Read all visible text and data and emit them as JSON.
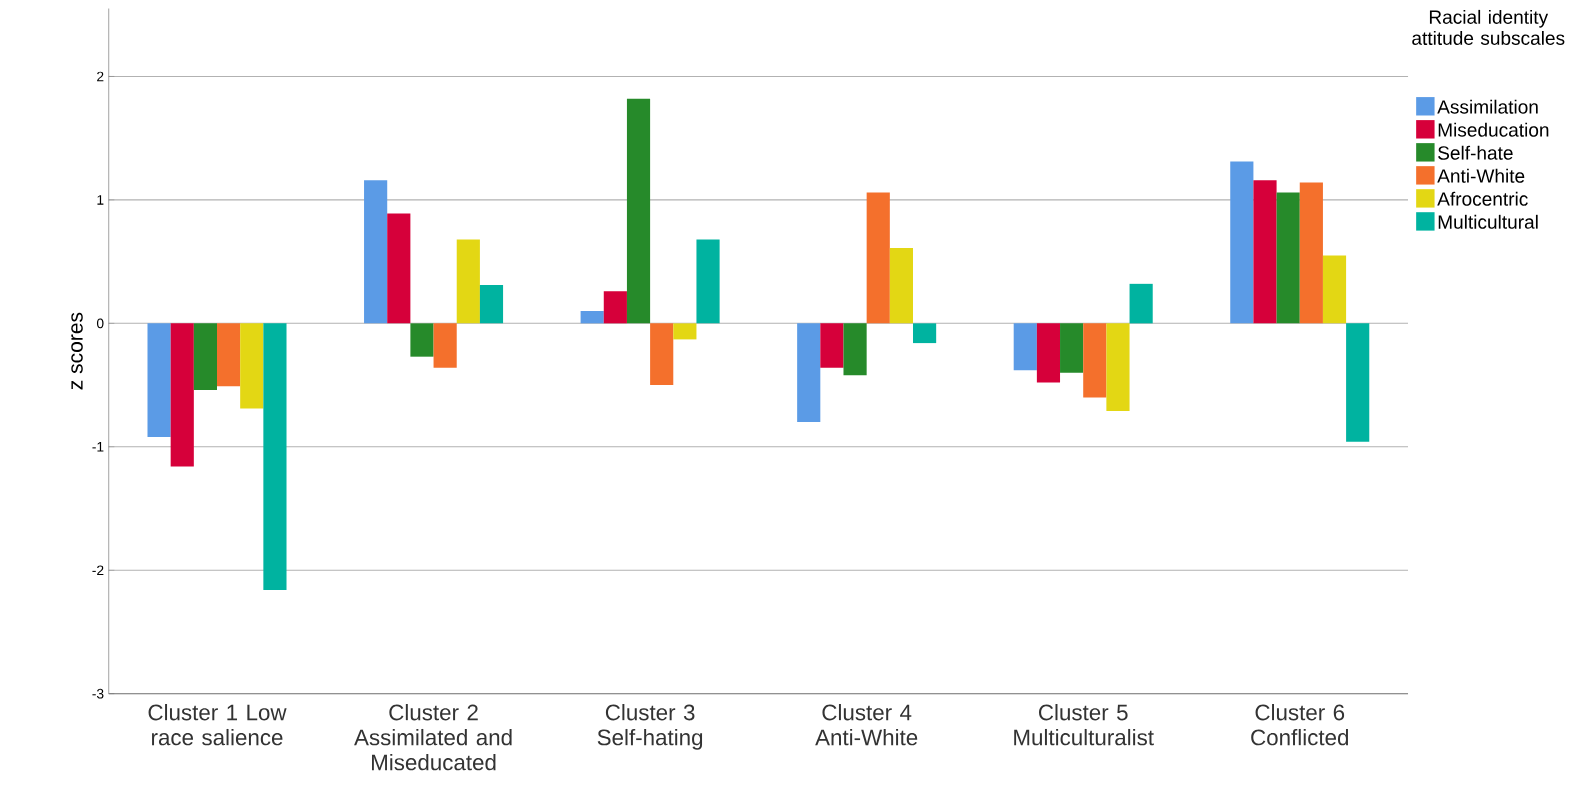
{
  "chart_data": {
    "type": "bar",
    "ylabel": "z scores",
    "legend_title": "Racial identity attitude subscales",
    "legend": "top right",
    "grid": "y",
    "categories": [
      "Cluster 1 Low race salience",
      "Cluster 2 Assimilated and Miseducated",
      "Cluster 3 Self-hating",
      "Cluster 4 Anti-White",
      "Cluster 5 Multiculturalist",
      "Cluster 6 Conflicted"
    ],
    "ylim": [
      -3,
      2.55
    ],
    "yticks": [
      -3,
      -2,
      -1,
      0,
      1,
      2
    ],
    "series": [
      {
        "name": "Assimilation",
        "color": "#5b9be6",
        "values": [
          -0.92,
          1.16,
          0.1,
          -0.8,
          -0.38,
          1.31
        ]
      },
      {
        "name": "Miseducation",
        "color": "#d6003a",
        "values": [
          -1.16,
          0.89,
          0.26,
          -0.36,
          -0.48,
          1.16
        ]
      },
      {
        "name": "Self-hate",
        "color": "#268a2a",
        "values": [
          -0.54,
          -0.27,
          1.82,
          -0.42,
          -0.4,
          1.06
        ]
      },
      {
        "name": "Anti-White",
        "color": "#f4702c",
        "values": [
          -0.51,
          -0.36,
          -0.5,
          1.06,
          -0.6,
          1.14
        ]
      },
      {
        "name": "Afrocentric",
        "color": "#e3d714",
        "values": [
          -0.69,
          0.68,
          -0.13,
          0.61,
          -0.71,
          0.55
        ]
      },
      {
        "name": "Multicultural",
        "color": "#00b3a0",
        "values": [
          -2.16,
          0.31,
          0.68,
          -0.16,
          0.32,
          -0.96
        ]
      }
    ]
  }
}
